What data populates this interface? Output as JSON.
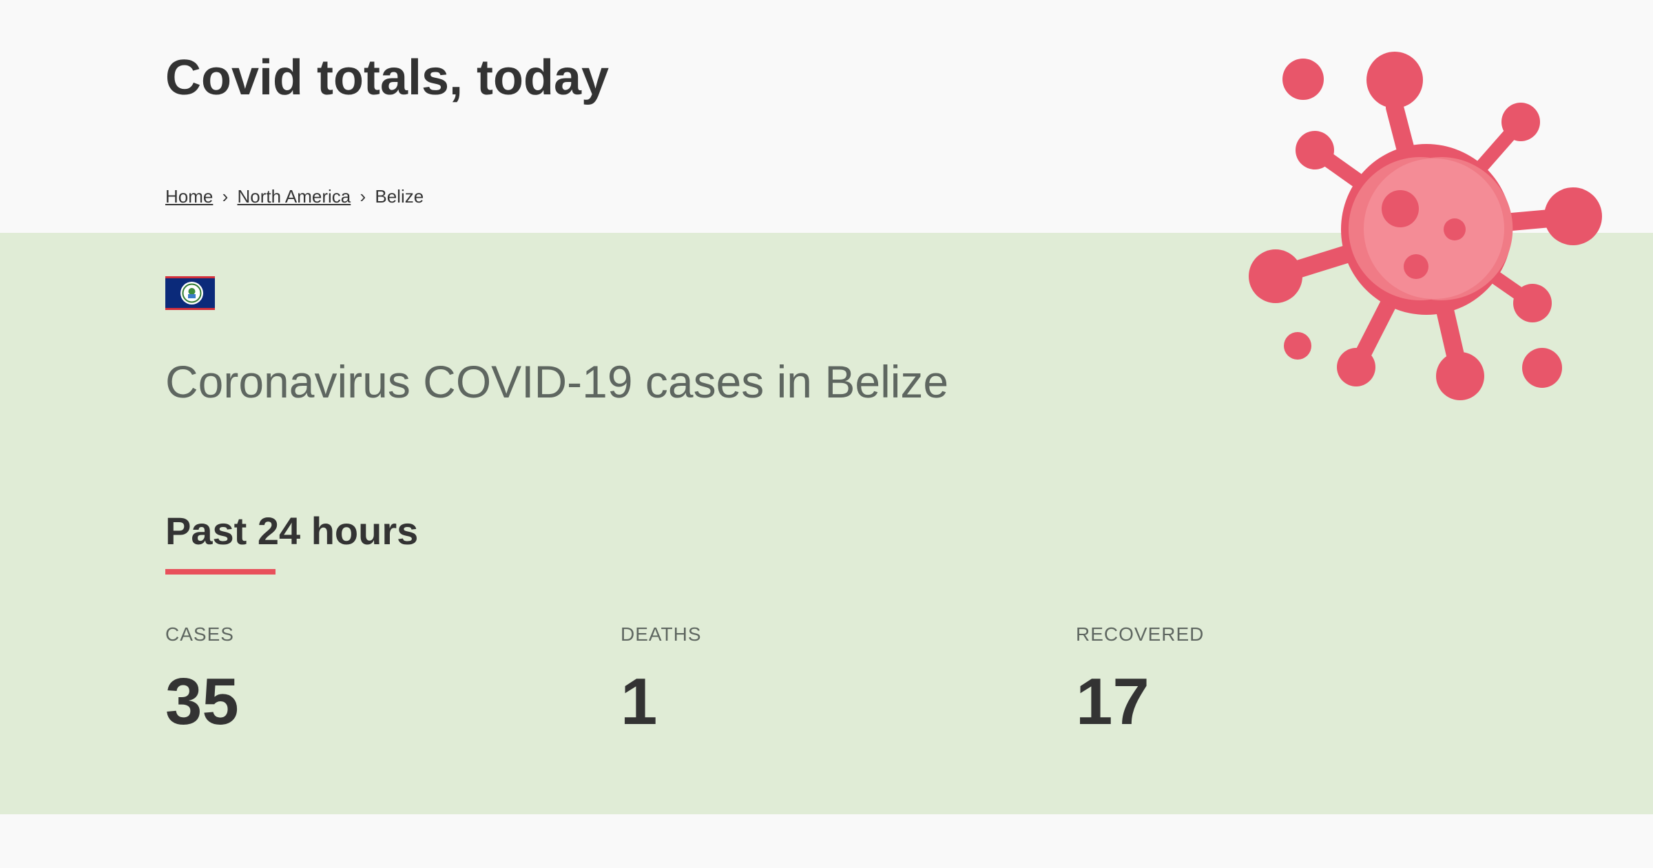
{
  "header": {
    "title": "Covid totals, today"
  },
  "breadcrumb": {
    "home": "Home",
    "region": "North America",
    "current": "Belize",
    "separator": "›"
  },
  "flag": {
    "icon": "belize-flag-icon",
    "colors": {
      "blue": "#0b2a7a",
      "red": "#d32f3a"
    }
  },
  "main": {
    "heading": "Coronavirus COVID-19 cases in Belize",
    "section_title": "Past 24 hours",
    "accent_color": "#e8505b",
    "stats": [
      {
        "label": "CASES",
        "value": "35"
      },
      {
        "label": "DEATHS",
        "value": "1"
      },
      {
        "label": "RECOVERED",
        "value": "17"
      }
    ]
  },
  "decoration": {
    "icon": "virus-icon",
    "color": "#e8566a"
  },
  "colors": {
    "band": "#e0ecd6",
    "page": "#f9f9f9"
  }
}
